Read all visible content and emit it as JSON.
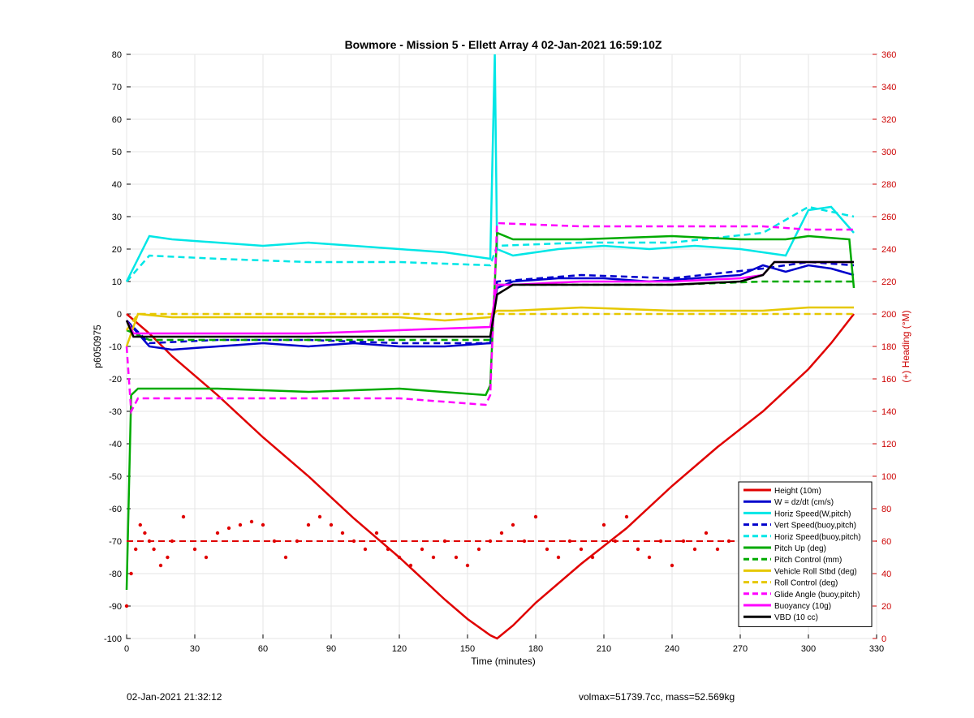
{
  "chart_data": {
    "type": "line",
    "title": "Bowmore - Mission 5 - Ellett Array 4 02-Jan-2021 16:59:10Z",
    "xlabel": "Time (minutes)",
    "ylabel_left": "p6050975",
    "ylabel_right": "(+) Heading (°M)",
    "xlim": [
      0,
      330
    ],
    "ylim_left": [
      -100,
      80
    ],
    "ylim_right": [
      0,
      360
    ],
    "x_ticks": [
      0,
      30,
      60,
      90,
      120,
      150,
      180,
      210,
      240,
      270,
      300,
      330
    ],
    "y_ticks_left": [
      80,
      70,
      60,
      50,
      40,
      30,
      20,
      10,
      0,
      -10,
      -20,
      -30,
      -40,
      -50,
      -60,
      -70,
      -80,
      -90,
      -100
    ],
    "y_ticks_right": [
      360,
      340,
      320,
      300,
      280,
      260,
      240,
      220,
      200,
      180,
      160,
      140,
      120,
      100,
      80,
      60,
      40,
      20,
      0
    ],
    "grid": true,
    "legend_position": "bottom-right",
    "colors": {
      "height": "#e00000",
      "w": "#0000cc",
      "horiz_speed": "#00e6e6",
      "pitch": "#00aa00",
      "roll": "#e6c800",
      "glide": "#ff00ff",
      "buoyancy": "#ff00ff",
      "vbd": "#000000",
      "heading": "#e00000",
      "right_axis": "#cc0000"
    },
    "series": [
      {
        "name": "Height (10m)",
        "style": "solid",
        "color": "#e00000",
        "x": [
          0,
          10,
          20,
          40,
          60,
          80,
          100,
          120,
          140,
          150,
          160,
          163,
          170,
          180,
          200,
          220,
          240,
          260,
          280,
          300,
          310,
          320
        ],
        "y": [
          0,
          -6,
          -13,
          -25,
          -38,
          -50,
          -63,
          -75,
          -88,
          -94,
          -99,
          -100,
          -96,
          -89,
          -77,
          -66,
          -53,
          -41,
          -30,
          -17,
          -9,
          0
        ]
      },
      {
        "name": "W = dz/dt (cm/s)",
        "style": "solid",
        "color": "#0000cc",
        "x": [
          0,
          10,
          20,
          40,
          60,
          80,
          100,
          120,
          140,
          160,
          163,
          170,
          190,
          210,
          230,
          250,
          270,
          280,
          290,
          300,
          310,
          320
        ],
        "y": [
          -2,
          -10,
          -11,
          -10,
          -9,
          -10,
          -9,
          -10,
          -10,
          -9,
          8,
          10,
          11,
          11,
          10,
          11,
          12,
          15,
          13,
          15,
          14,
          12
        ]
      },
      {
        "name": "Horiz Speed(W,pitch)",
        "style": "solid",
        "color": "#00e6e6",
        "x": [
          0,
          10,
          20,
          40,
          60,
          80,
          100,
          120,
          140,
          160,
          162,
          163,
          170,
          190,
          210,
          230,
          250,
          270,
          290,
          300,
          310,
          320
        ],
        "y": [
          10,
          24,
          23,
          22,
          21,
          22,
          21,
          20,
          19,
          17,
          80,
          20,
          18,
          20,
          21,
          20,
          21,
          20,
          18,
          32,
          33,
          25
        ]
      },
      {
        "name": "Vert Speed(buoy,pitch)",
        "style": "dashed",
        "color": "#0000cc",
        "x": [
          0,
          10,
          40,
          80,
          120,
          160,
          163,
          200,
          240,
          280,
          300,
          320
        ],
        "y": [
          -2,
          -9,
          -8,
          -8,
          -9,
          -9,
          10,
          12,
          11,
          14,
          16,
          15
        ]
      },
      {
        "name": "Horiz Speed(buoy,pitch)",
        "style": "dashed",
        "color": "#00e6e6",
        "x": [
          0,
          10,
          40,
          80,
          120,
          160,
          163,
          200,
          240,
          280,
          300,
          320
        ],
        "y": [
          10,
          18,
          17,
          16,
          16,
          15,
          21,
          22,
          22,
          25,
          33,
          30
        ]
      },
      {
        "name": "Pitch Up (deg)",
        "style": "solid",
        "color": "#00aa00",
        "x": [
          0,
          2,
          5,
          40,
          80,
          120,
          158,
          160,
          163,
          170,
          200,
          240,
          270,
          290,
          300,
          318,
          320
        ],
        "y": [
          -85,
          -25,
          -23,
          -23,
          -24,
          -23,
          -25,
          -22,
          25,
          23,
          23,
          24,
          23,
          23,
          24,
          23,
          8
        ]
      },
      {
        "name": "Pitch Control (mm)",
        "style": "dashed",
        "color": "#00aa00",
        "x": [
          0,
          10,
          40,
          80,
          120,
          160,
          163,
          200,
          240,
          280,
          300,
          320
        ],
        "y": [
          -5,
          -8,
          -8,
          -8,
          -8,
          -8,
          9,
          9,
          9,
          10,
          10,
          10
        ]
      },
      {
        "name": "Vehicle Roll Stbd (deg)",
        "style": "solid",
        "color": "#e6c800",
        "x": [
          0,
          5,
          20,
          40,
          60,
          80,
          100,
          120,
          140,
          160,
          163,
          170,
          200,
          240,
          280,
          300,
          320
        ],
        "y": [
          -10,
          0,
          -1,
          -1,
          -1,
          -1,
          -1,
          -1,
          -2,
          -1,
          1,
          1,
          2,
          1,
          1,
          2,
          2
        ]
      },
      {
        "name": "Roll Control (deg)",
        "style": "dashed",
        "color": "#e6c800",
        "x": [
          0,
          5,
          40,
          80,
          120,
          160,
          163,
          200,
          240,
          280,
          320
        ],
        "y": [
          -5,
          0,
          0,
          0,
          0,
          0,
          0,
          0,
          0,
          0,
          0
        ]
      },
      {
        "name": "Glide Angle (buoy,pitch)",
        "style": "dashed",
        "color": "#ff00ff",
        "x": [
          0,
          2,
          5,
          40,
          80,
          120,
          158,
          160,
          163,
          200,
          240,
          280,
          300,
          320
        ],
        "y": [
          -10,
          -30,
          -26,
          -26,
          -26,
          -26,
          -28,
          -25,
          28,
          27,
          27,
          27,
          26,
          26
        ]
      },
      {
        "name": "Buoyancy (10g)",
        "style": "solid",
        "color": "#ff00ff",
        "x": [
          0,
          3,
          40,
          80,
          120,
          160,
          163,
          170,
          200,
          240,
          270,
          280,
          285,
          300,
          320
        ],
        "y": [
          -2,
          -6,
          -6,
          -6,
          -5,
          -4,
          9,
          9,
          10,
          10,
          11,
          12,
          16,
          16,
          16
        ]
      },
      {
        "name": "VBD (10 cc)",
        "style": "solid",
        "color": "#000000",
        "x": [
          0,
          3,
          40,
          80,
          120,
          160,
          163,
          170,
          200,
          240,
          270,
          280,
          285,
          300,
          320
        ],
        "y": [
          -2,
          -7,
          -7,
          -7,
          -7,
          -7,
          6,
          9,
          9,
          9,
          10,
          12,
          16,
          16,
          16
        ]
      }
    ],
    "heading": {
      "name": "Heading",
      "style": "dots",
      "color": "#e00000",
      "axis": "right",
      "x": [
        0,
        2,
        4,
        6,
        8,
        10,
        12,
        15,
        18,
        20,
        25,
        30,
        35,
        40,
        45,
        50,
        55,
        60,
        65,
        70,
        75,
        80,
        85,
        90,
        95,
        100,
        105,
        110,
        115,
        120,
        125,
        130,
        135,
        140,
        145,
        150,
        155,
        160,
        165,
        170,
        175,
        180,
        185,
        190,
        195,
        200,
        205,
        210,
        215,
        220,
        225,
        230,
        235,
        240,
        245,
        250,
        255,
        260,
        265,
        270,
        275,
        280,
        285,
        290,
        295,
        300,
        305,
        310,
        315,
        320
      ],
      "y": [
        20,
        40,
        55,
        70,
        65,
        60,
        55,
        45,
        50,
        60,
        75,
        55,
        50,
        65,
        68,
        70,
        72,
        70,
        60,
        50,
        60,
        70,
        75,
        70,
        65,
        60,
        55,
        65,
        55,
        50,
        45,
        55,
        50,
        60,
        50,
        45,
        55,
        60,
        65,
        70,
        60,
        75,
        55,
        50,
        60,
        55,
        50,
        70,
        60,
        75,
        55,
        50,
        60,
        45,
        60,
        55,
        65,
        55,
        60,
        65,
        55,
        70,
        60,
        55,
        75,
        60,
        65,
        55,
        60,
        55
      ]
    },
    "heading_reference": {
      "value": 60,
      "axis": "right",
      "style": "dashed",
      "color": "#e00000"
    }
  },
  "footer": {
    "timestamp": "02-Jan-2021 21:32:12",
    "volume_mass": "volmax=51739.7cc, mass=52.569kg"
  }
}
